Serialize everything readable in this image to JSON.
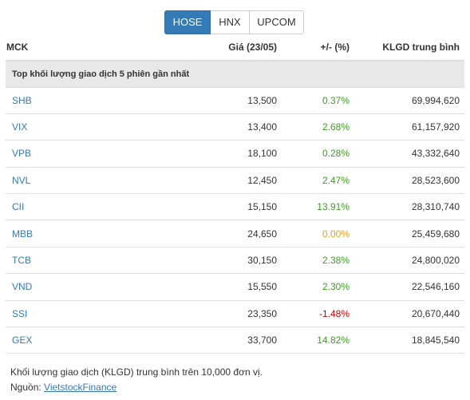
{
  "tabs": [
    {
      "label": "HOSE",
      "active": true
    },
    {
      "label": "HNX",
      "active": false
    },
    {
      "label": "UPCOM",
      "active": false
    }
  ],
  "table": {
    "headers": {
      "mck": "MCK",
      "price": "Giá (23/05)",
      "change": "+/- (%)",
      "volume": "KLGD trung bình"
    },
    "group_label": "Top khối lượng giao dịch 5 phiên gần nhất",
    "rows": [
      {
        "mck": "SHB",
        "price": "13,500",
        "change": "0.37%",
        "volume": "69,994,620"
      },
      {
        "mck": "VIX",
        "price": "13,400",
        "change": "2.68%",
        "volume": "61,157,920"
      },
      {
        "mck": "VPB",
        "price": "18,100",
        "change": "0.28%",
        "volume": "43,332,640"
      },
      {
        "mck": "NVL",
        "price": "12,450",
        "change": "2.47%",
        "volume": "28,523,600"
      },
      {
        "mck": "CII",
        "price": "15,150",
        "change": "13.91%",
        "volume": "28,310,740"
      },
      {
        "mck": "MBB",
        "price": "24,650",
        "change": "0.00%",
        "volume": "25,459,680"
      },
      {
        "mck": "TCB",
        "price": "30,150",
        "change": "2.38%",
        "volume": "24,800,020"
      },
      {
        "mck": "VND",
        "price": "15,550",
        "change": "2.30%",
        "volume": "22,546,160"
      },
      {
        "mck": "SSI",
        "price": "23,350",
        "change": "-1.48%",
        "volume": "20,670,440"
      },
      {
        "mck": "GEX",
        "price": "33,700",
        "change": "14.82%",
        "volume": "18,845,540"
      }
    ]
  },
  "footer": {
    "note": "Khối lượng giao dịch (KLGD) trung bình trên 10,000 đơn vị.",
    "source_label": "Nguồn: ",
    "source_link": "VietstockFinance"
  },
  "colors": {
    "accent": "#337ab7",
    "positive": "#3c9e1f",
    "negative": "#cc0000",
    "neutral": "#f39c12"
  }
}
